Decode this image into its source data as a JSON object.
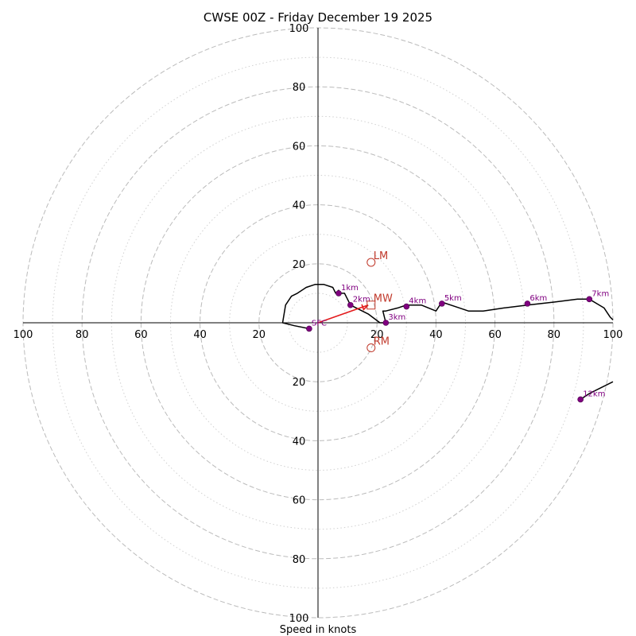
{
  "chart_data": {
    "type": "hodograph",
    "title": "CWSE 00Z - Friday December 19 2025",
    "xlabel": "Speed in knots",
    "xlim": [
      -100,
      100
    ],
    "ylim": [
      -100,
      100
    ],
    "major_rings": [
      20,
      40,
      60,
      80,
      100
    ],
    "minor_rings": [
      10,
      30,
      50,
      70,
      90
    ],
    "x_tick_labels": [
      "100",
      "80",
      "60",
      "40",
      "20",
      "20",
      "40",
      "60",
      "80",
      "100"
    ],
    "y_tick_labels": [
      "100",
      "80",
      "60",
      "40",
      "20",
      "20",
      "40",
      "60",
      "80",
      "100"
    ],
    "wind_profile": {
      "u": [
        -3,
        -8,
        -12,
        -11,
        -9,
        -7,
        -4,
        -1,
        2,
        5,
        6,
        7,
        7,
        9,
        10,
        11,
        17,
        21,
        23,
        22,
        23,
        27,
        30,
        35,
        40,
        42,
        48,
        51,
        56,
        63,
        71,
        80,
        88,
        92,
        97,
        99,
        100
      ],
      "v": [
        -2,
        -1,
        0,
        6,
        9,
        10,
        12,
        13,
        13,
        12,
        10,
        11,
        10,
        10,
        8,
        6,
        3,
        0,
        0,
        4,
        4,
        5,
        6,
        6,
        4,
        7,
        5,
        4,
        4,
        5,
        6,
        7,
        8,
        8,
        5,
        2,
        1
      ]
    },
    "lower_trace": {
      "u": [
        100,
        96,
        92,
        89
      ],
      "v": [
        -20,
        -22,
        -24,
        -26
      ]
    },
    "height_markers": [
      {
        "label": "SFC",
        "u": -3,
        "v": -2
      },
      {
        "label": "1km",
        "u": 7,
        "v": 10
      },
      {
        "label": "2km",
        "u": 11,
        "v": 6
      },
      {
        "label": "3km",
        "u": 23,
        "v": 0
      },
      {
        "label": "4km",
        "u": 30,
        "v": 5.5
      },
      {
        "label": "5km",
        "u": 42,
        "v": 6.5
      },
      {
        "label": "6km",
        "u": 71,
        "v": 6.5
      },
      {
        "label": "7km",
        "u": 92,
        "v": 8
      },
      {
        "label": "12km",
        "u": 89,
        "v": -26
      }
    ],
    "storm_motion": [
      {
        "label": "LM",
        "u": 18,
        "v": 20.5,
        "marker": "circle"
      },
      {
        "label": "MW",
        "u": 18,
        "v": 6,
        "marker": "square"
      },
      {
        "label": "RM",
        "u": 18,
        "v": -8.5,
        "marker": "circle"
      }
    ],
    "shear_vector": {
      "from": [
        0,
        0
      ],
      "to": [
        17,
        6
      ]
    },
    "colors": {
      "profile": "#000000",
      "markers": "#800080",
      "storm_motion": "#c0392b",
      "shear": "#e31a1c",
      "grid": "#bbbbbb",
      "minor_grid": "#d0d0d0"
    }
  }
}
